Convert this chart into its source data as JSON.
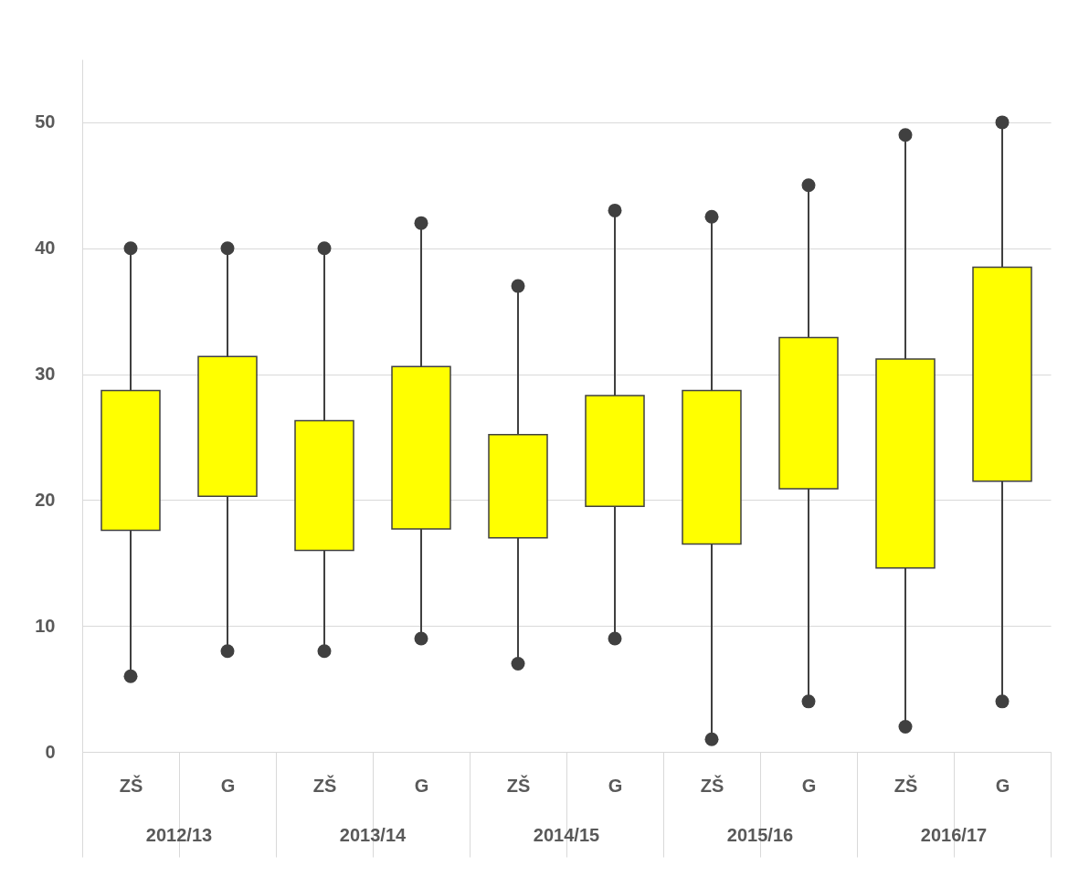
{
  "chart_data": {
    "type": "box",
    "categories": [
      "ZŠ",
      "G",
      "ZŠ",
      "G",
      "ZŠ",
      "G",
      "ZŠ",
      "G",
      "ZŠ",
      "G"
    ],
    "annotations": [
      "2012/13",
      "2013/14",
      "2014/15",
      "2015/16",
      "2016/17"
    ],
    "color": "#ffff00",
    "ylim": [
      0,
      55
    ],
    "yticks": [
      0,
      10,
      20,
      30,
      40,
      50
    ],
    "grid": "y",
    "boxes": [
      {
        "low": 6,
        "q1": 17.6,
        "q3": 28.7,
        "high": 40
      },
      {
        "low": 8,
        "q1": 20.3,
        "q3": 31.4,
        "high": 40
      },
      {
        "low": 8,
        "q1": 16,
        "q3": 26.3,
        "high": 40
      },
      {
        "low": 9,
        "q1": 17.7,
        "q3": 30.6,
        "high": 42
      },
      {
        "low": 7,
        "q1": 17,
        "q3": 25.2,
        "high": 37
      },
      {
        "low": 9,
        "q1": 19.5,
        "q3": 28.3,
        "high": 43
      },
      {
        "low": 1,
        "q1": 16.5,
        "q3": 28.7,
        "high": 42.5
      },
      {
        "low": 4,
        "q1": 20.9,
        "q3": 32.9,
        "high": 45
      },
      {
        "low": 2,
        "q1": 14.6,
        "q3": 31.2,
        "high": 49
      },
      {
        "low": 4,
        "q1": 21.5,
        "q3": 38.5,
        "high": 50
      }
    ]
  }
}
